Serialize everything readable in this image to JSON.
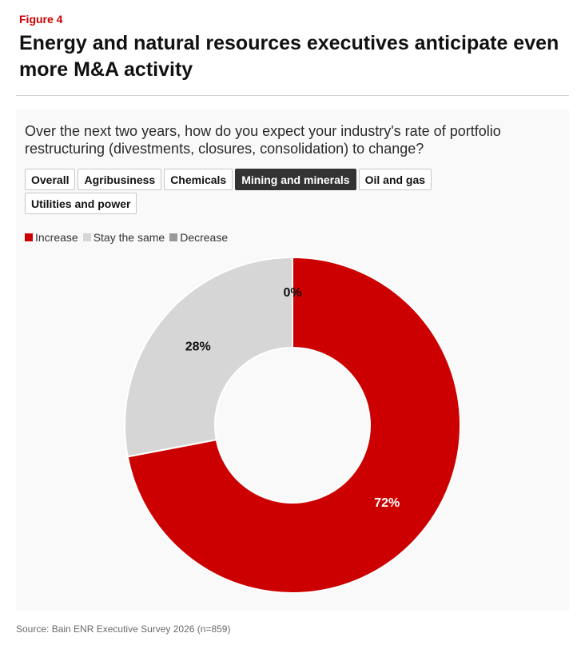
{
  "header": {
    "figure_label": "Figure 4",
    "title": "Energy and natural resources executives anticipate even more M&A activity"
  },
  "question": "Over the next two years, how do you expect your industry's rate of portfolio restructuring (divestments, closures, consolidation) to change?",
  "tabs": [
    {
      "label": "Overall",
      "active": false
    },
    {
      "label": "Agribusiness",
      "active": false
    },
    {
      "label": "Chemicals",
      "active": false
    },
    {
      "label": "Mining and minerals",
      "active": true
    },
    {
      "label": "Oil and gas",
      "active": false
    },
    {
      "label": "Utilities and power",
      "active": false
    }
  ],
  "legend": [
    {
      "label": "Increase",
      "color": "#cc0000"
    },
    {
      "label": "Stay the same",
      "color": "#d6d6d6"
    },
    {
      "label": "Decrease",
      "color": "#999999"
    }
  ],
  "chart_data": {
    "type": "pie",
    "variant": "donut",
    "categories": [
      "Increase",
      "Stay the same",
      "Decrease"
    ],
    "values": [
      72,
      28,
      0
    ],
    "labels": [
      "72%",
      "28%",
      "0%"
    ],
    "colors": [
      "#cc0000",
      "#d6d6d6",
      "#999999"
    ],
    "label_colors": [
      "#ffffff",
      "#111111",
      "#111111"
    ],
    "start_angle": "12 o'clock",
    "direction": "clockwise"
  },
  "source": "Source: Bain ENR Executive Survey 2026 (n=859)"
}
